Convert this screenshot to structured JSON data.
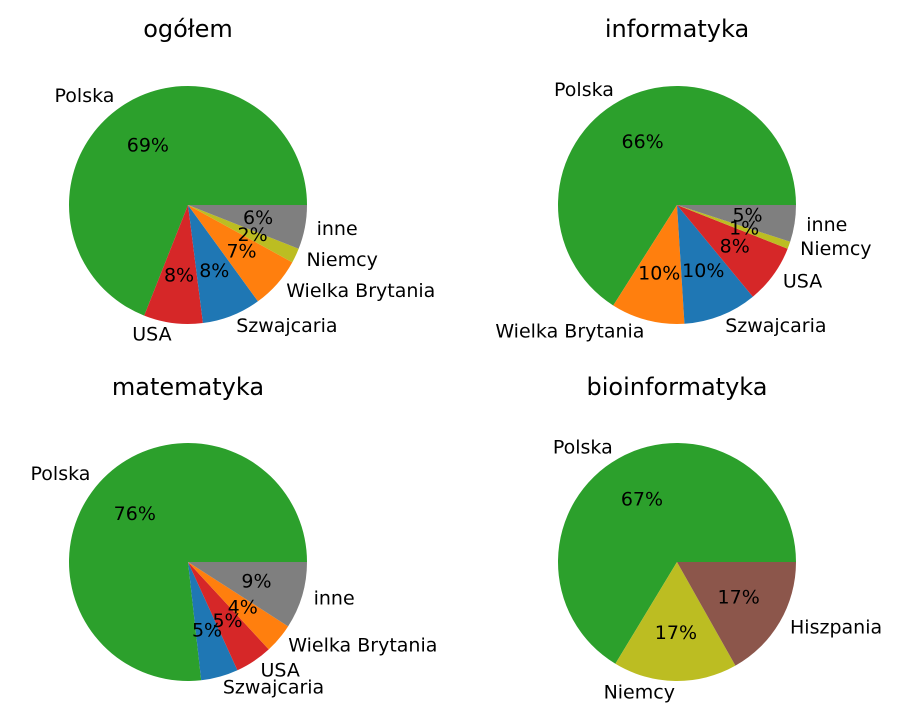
{
  "chart_data": [
    {
      "type": "pie",
      "title": "ogółem",
      "categories": [
        "Polska",
        "USA",
        "Szwajcaria",
        "Wielka Brytania",
        "Niemcy",
        "inne"
      ],
      "values": [
        69,
        8,
        8,
        7,
        2,
        6
      ],
      "value_labels": [
        "69%",
        "8%",
        "8%",
        "7%",
        "2%",
        "6%"
      ],
      "colors": [
        "#2ca02c",
        "#d62728",
        "#1f77b4",
        "#ff7f0e",
        "#bcbd22",
        "#7f7f7f"
      ]
    },
    {
      "type": "pie",
      "title": "informatyka",
      "categories": [
        "Polska",
        "Wielka Brytania",
        "Szwajcaria",
        "USA",
        "Niemcy",
        "inne"
      ],
      "values": [
        66,
        10,
        10,
        8,
        1,
        5
      ],
      "value_labels": [
        "66%",
        "10%",
        "10%",
        "8%",
        "1%",
        "5%"
      ],
      "colors": [
        "#2ca02c",
        "#ff7f0e",
        "#1f77b4",
        "#d62728",
        "#bcbd22",
        "#7f7f7f"
      ]
    },
    {
      "type": "pie",
      "title": "matematyka",
      "categories": [
        "Polska",
        "Szwajcaria",
        "USA",
        "Wielka Brytania",
        "inne"
      ],
      "values": [
        76,
        5,
        5,
        4,
        9
      ],
      "value_labels": [
        "76%",
        "5%",
        "5%",
        "4%",
        "9%"
      ],
      "colors": [
        "#2ca02c",
        "#1f77b4",
        "#d62728",
        "#ff7f0e",
        "#7f7f7f"
      ]
    },
    {
      "type": "pie",
      "title": "bioinformatyka",
      "categories": [
        "Polska",
        "Niemcy",
        "Hiszpania"
      ],
      "values": [
        67,
        17,
        17
      ],
      "value_labels": [
        "67%",
        "17%",
        "17%"
      ],
      "colors": [
        "#2ca02c",
        "#bcbd22",
        "#8c564b"
      ]
    }
  ]
}
